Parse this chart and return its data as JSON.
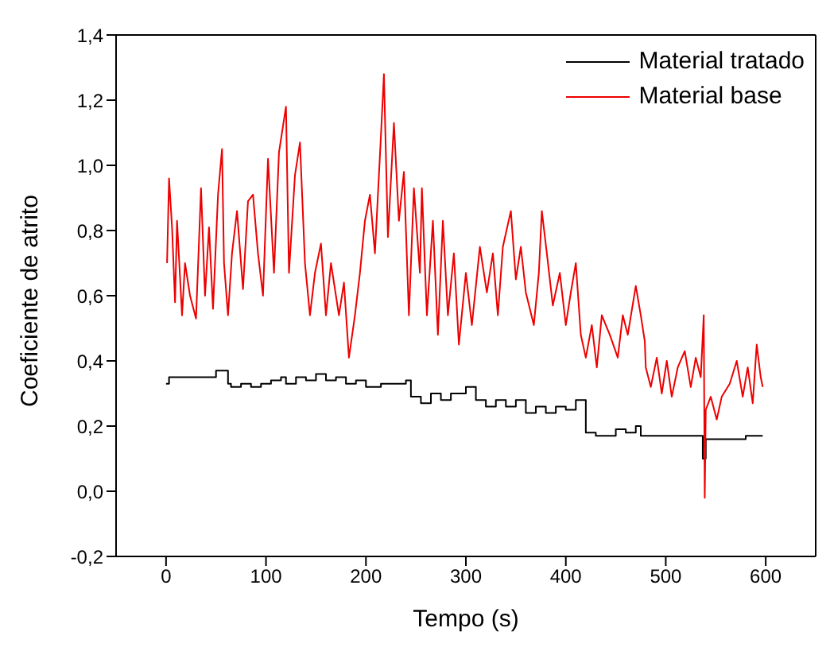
{
  "chart_data": {
    "type": "line",
    "xlabel": "Tempo (s)",
    "ylabel": "Coeficiente de atrito",
    "xlim": [
      -50,
      650
    ],
    "xticks": [
      0,
      100,
      200,
      300,
      400,
      500,
      600
    ],
    "ylim": [
      -0.2,
      1.4
    ],
    "yticks": [
      {
        "value": -0.2,
        "label": "-0,2"
      },
      {
        "value": 0,
        "label": "0,0"
      },
      {
        "value": 0.2,
        "label": "0,2"
      },
      {
        "value": 0.4,
        "label": "0,4"
      },
      {
        "value": 0.6,
        "label": "0,6"
      },
      {
        "value": 0.8,
        "label": "0,8"
      },
      {
        "value": 1.0,
        "label": "1,0"
      },
      {
        "value": 1.2,
        "label": "1,2"
      },
      {
        "value": 1.4,
        "label": "1,4"
      }
    ],
    "grid": false,
    "legend": "top right",
    "marker": "none",
    "line_style": "solid",
    "series": [
      {
        "name": "Material tratado",
        "color": "#000000",
        "type": "step",
        "x": [
          0,
          3,
          10,
          20,
          30,
          40,
          50,
          55,
          62,
          65,
          75,
          85,
          95,
          105,
          115,
          120,
          130,
          140,
          150,
          160,
          170,
          180,
          190,
          200,
          215,
          230,
          240,
          245,
          255,
          265,
          275,
          285,
          295,
          300,
          310,
          320,
          330,
          340,
          350,
          360,
          370,
          380,
          390,
          400,
          410,
          420,
          430,
          440,
          450,
          460,
          470,
          475,
          490,
          510,
          530,
          535,
          537,
          540,
          560,
          580,
          597
        ],
        "values": [
          0.33,
          0.35,
          0.35,
          0.35,
          0.35,
          0.35,
          0.37,
          0.37,
          0.33,
          0.32,
          0.33,
          0.32,
          0.33,
          0.34,
          0.35,
          0.33,
          0.35,
          0.34,
          0.36,
          0.34,
          0.35,
          0.33,
          0.34,
          0.32,
          0.33,
          0.33,
          0.34,
          0.29,
          0.27,
          0.3,
          0.28,
          0.3,
          0.3,
          0.32,
          0.28,
          0.26,
          0.28,
          0.26,
          0.28,
          0.24,
          0.26,
          0.24,
          0.26,
          0.25,
          0.28,
          0.18,
          0.17,
          0.17,
          0.19,
          0.18,
          0.2,
          0.17,
          0.17,
          0.17,
          0.17,
          0.17,
          0.1,
          0.16,
          0.16,
          0.17,
          0.17
        ]
      },
      {
        "name": "Material base",
        "color": "#ee0000",
        "x": [
          1,
          3,
          6,
          9,
          11,
          16,
          19,
          24,
          30,
          35,
          39,
          43,
          47,
          52,
          56,
          58,
          62,
          66,
          71,
          77,
          82,
          87,
          92,
          97,
          102,
          108,
          113,
          120,
          123,
          129,
          134,
          139,
          144,
          149,
          155,
          160,
          165,
          173,
          178,
          183,
          189,
          194,
          199,
          204,
          209,
          215,
          218,
          222,
          228,
          233,
          238,
          243,
          248,
          254,
          256,
          261,
          267,
          272,
          277,
          282,
          288,
          293,
          300,
          306,
          314,
          321,
          327,
          332,
          337,
          345,
          350,
          355,
          360,
          368,
          373,
          376,
          381,
          387,
          394,
          400,
          405,
          410,
          415,
          420,
          426,
          431,
          436,
          444,
          452,
          457,
          462,
          470,
          475,
          479,
          480,
          485,
          491,
          496,
          501,
          506,
          512,
          519,
          525,
          530,
          535,
          538,
          539,
          540,
          545,
          551,
          556,
          564,
          571,
          577,
          582,
          587,
          591,
          595,
          597
        ],
        "values": [
          0.7,
          0.96,
          0.81,
          0.58,
          0.83,
          0.54,
          0.7,
          0.6,
          0.53,
          0.93,
          0.6,
          0.81,
          0.56,
          0.91,
          1.05,
          0.7,
          0.54,
          0.73,
          0.86,
          0.62,
          0.89,
          0.91,
          0.73,
          0.6,
          1.02,
          0.67,
          1.04,
          1.18,
          0.67,
          0.97,
          1.07,
          0.7,
          0.54,
          0.67,
          0.76,
          0.54,
          0.7,
          0.54,
          0.64,
          0.41,
          0.54,
          0.67,
          0.83,
          0.91,
          0.73,
          1.09,
          1.28,
          0.78,
          1.13,
          0.83,
          0.98,
          0.54,
          0.93,
          0.67,
          0.93,
          0.54,
          0.83,
          0.48,
          0.83,
          0.54,
          0.73,
          0.45,
          0.67,
          0.51,
          0.75,
          0.61,
          0.73,
          0.54,
          0.75,
          0.86,
          0.65,
          0.75,
          0.61,
          0.51,
          0.67,
          0.86,
          0.73,
          0.57,
          0.67,
          0.51,
          0.61,
          0.7,
          0.48,
          0.41,
          0.51,
          0.38,
          0.54,
          0.48,
          0.41,
          0.54,
          0.48,
          0.63,
          0.54,
          0.46,
          0.38,
          0.32,
          0.41,
          0.3,
          0.4,
          0.29,
          0.38,
          0.43,
          0.32,
          0.41,
          0.35,
          0.54,
          -0.02,
          0.25,
          0.29,
          0.22,
          0.29,
          0.33,
          0.4,
          0.29,
          0.38,
          0.27,
          0.45,
          0.35,
          0.32
        ]
      }
    ]
  }
}
